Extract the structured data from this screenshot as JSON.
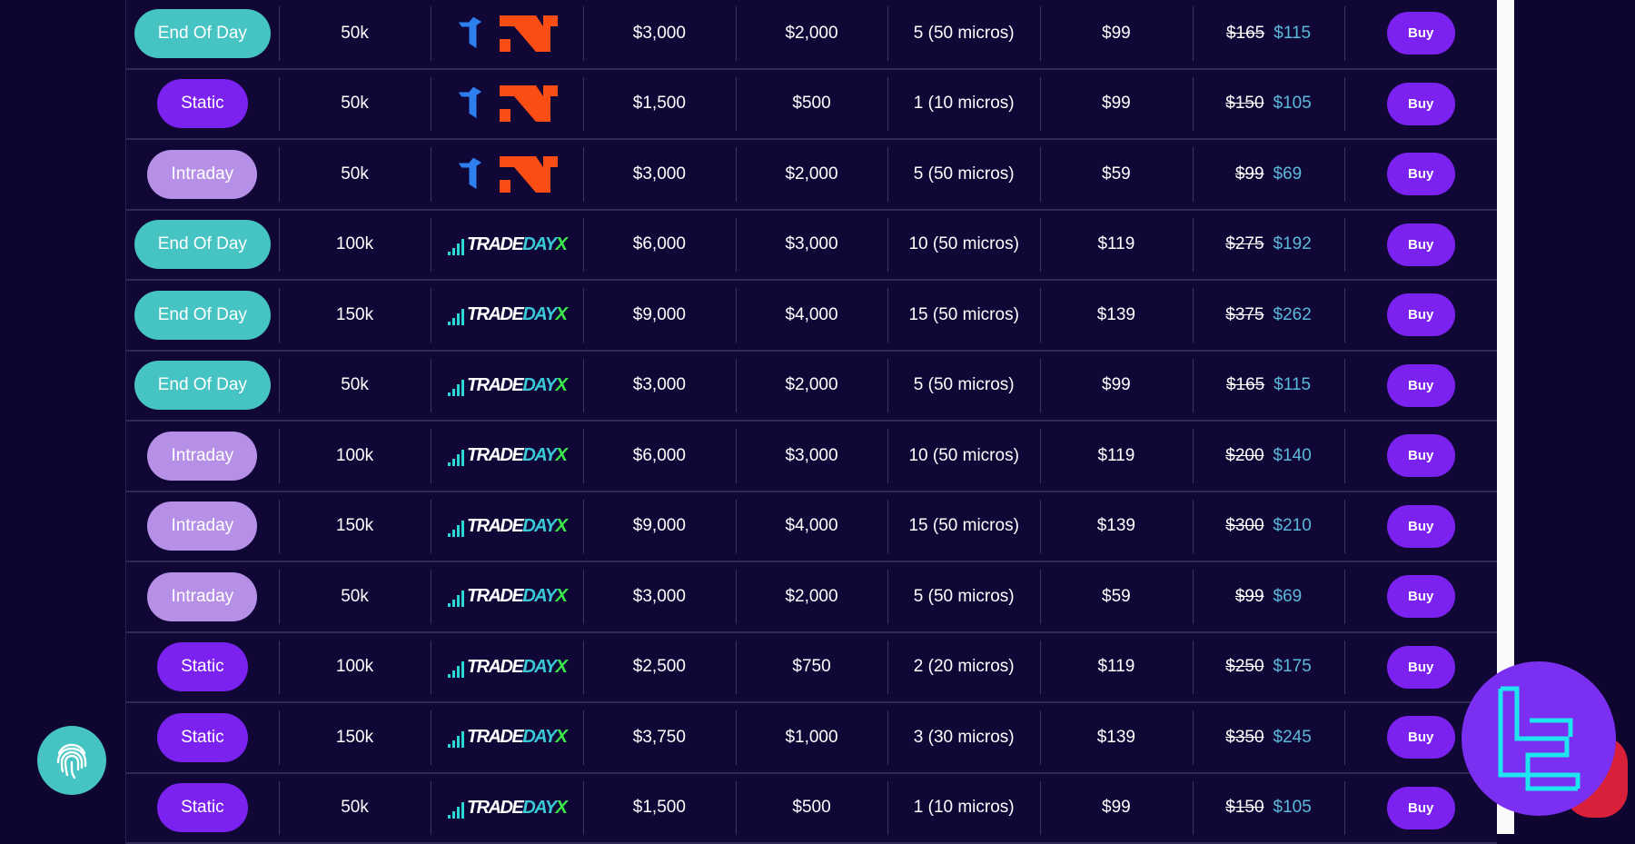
{
  "colors": {
    "end_of_day": "#46c3c3",
    "static": "#7b22f0",
    "intraday": "#b590e6",
    "discount": "#5cb9d9",
    "background": "#0e0530"
  },
  "buy_label": "Buy",
  "tradedayx_logo": {
    "part1": "TRADE",
    "part2": "DAY",
    "part3": "X"
  },
  "rows": [
    {
      "type": "End Of Day",
      "kind": "eod",
      "size": "50k",
      "platform": "tradovate-ninjatrader",
      "target": "$3,000",
      "drawdown": "$2,000",
      "contracts": "5 (50 micros)",
      "activation": "$99",
      "old_price": "$165",
      "new_price": "$115"
    },
    {
      "type": "Static",
      "kind": "static",
      "size": "50k",
      "platform": "tradovate-ninjatrader",
      "target": "$1,500",
      "drawdown": "$500",
      "contracts": "1 (10 micros)",
      "activation": "$99",
      "old_price": "$150",
      "new_price": "$105"
    },
    {
      "type": "Intraday",
      "kind": "intraday",
      "size": "50k",
      "platform": "tradovate-ninjatrader",
      "target": "$3,000",
      "drawdown": "$2,000",
      "contracts": "5 (50 micros)",
      "activation": "$59",
      "old_price": "$99",
      "new_price": "$69"
    },
    {
      "type": "End Of Day",
      "kind": "eod",
      "size": "100k",
      "platform": "tradedayx",
      "target": "$6,000",
      "drawdown": "$3,000",
      "contracts": "10 (50 micros)",
      "activation": "$119",
      "old_price": "$275",
      "new_price": "$192"
    },
    {
      "type": "End Of Day",
      "kind": "eod",
      "size": "150k",
      "platform": "tradedayx",
      "target": "$9,000",
      "drawdown": "$4,000",
      "contracts": "15 (50 micros)",
      "activation": "$139",
      "old_price": "$375",
      "new_price": "$262"
    },
    {
      "type": "End Of Day",
      "kind": "eod",
      "size": "50k",
      "platform": "tradedayx",
      "target": "$3,000",
      "drawdown": "$2,000",
      "contracts": "5 (50 micros)",
      "activation": "$99",
      "old_price": "$165",
      "new_price": "$115"
    },
    {
      "type": "Intraday",
      "kind": "intraday",
      "size": "100k",
      "platform": "tradedayx",
      "target": "$6,000",
      "drawdown": "$3,000",
      "contracts": "10 (50 micros)",
      "activation": "$119",
      "old_price": "$200",
      "new_price": "$140"
    },
    {
      "type": "Intraday",
      "kind": "intraday",
      "size": "150k",
      "platform": "tradedayx",
      "target": "$9,000",
      "drawdown": "$4,000",
      "contracts": "15 (50 micros)",
      "activation": "$139",
      "old_price": "$300",
      "new_price": "$210"
    },
    {
      "type": "Intraday",
      "kind": "intraday",
      "size": "50k",
      "platform": "tradedayx",
      "target": "$3,000",
      "drawdown": "$2,000",
      "contracts": "5 (50 micros)",
      "activation": "$59",
      "old_price": "$99",
      "new_price": "$69"
    },
    {
      "type": "Static",
      "kind": "static",
      "size": "100k",
      "platform": "tradedayx",
      "target": "$2,500",
      "drawdown": "$750",
      "contracts": "2 (20 micros)",
      "activation": "$119",
      "old_price": "$250",
      "new_price": "$175"
    },
    {
      "type": "Static",
      "kind": "static",
      "size": "150k",
      "platform": "tradedayx",
      "target": "$3,750",
      "drawdown": "$1,000",
      "contracts": "3 (30 micros)",
      "activation": "$139",
      "old_price": "$350",
      "new_price": "$245"
    },
    {
      "type": "Static",
      "kind": "static",
      "size": "50k",
      "platform": "tradedayx",
      "target": "$1,500",
      "drawdown": "$500",
      "contracts": "1 (10 micros)",
      "activation": "$99",
      "old_price": "$150",
      "new_price": "$105"
    }
  ]
}
